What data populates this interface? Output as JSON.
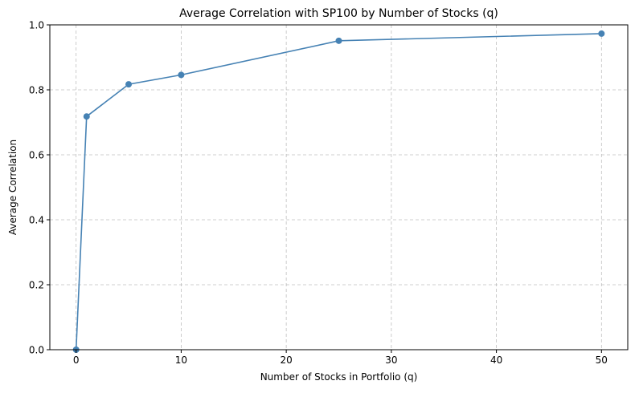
{
  "chart_data": {
    "type": "line",
    "title": "Average Correlation with SP100 by Number of Stocks (q)",
    "xlabel": "Number of Stocks in Portfolio (q)",
    "ylabel": "Average Correlation",
    "xlim": [
      -2.5,
      52.5
    ],
    "ylim": [
      0,
      1.0
    ],
    "xticks": [
      0,
      10,
      20,
      30,
      40,
      50
    ],
    "yticks": [
      0.0,
      0.2,
      0.4,
      0.6,
      0.8,
      1.0
    ],
    "xtick_labels": [
      "0",
      "10",
      "20",
      "30",
      "40",
      "50"
    ],
    "ytick_labels": [
      "0.0",
      "0.2",
      "0.4",
      "0.6",
      "0.8",
      "1.0"
    ],
    "grid": true,
    "color": "#4682b4",
    "series": [
      {
        "x": [
          0,
          1,
          5,
          10,
          25,
          50
        ],
        "y": [
          0.0,
          0.718,
          0.817,
          0.846,
          0.951,
          0.973
        ]
      }
    ]
  }
}
